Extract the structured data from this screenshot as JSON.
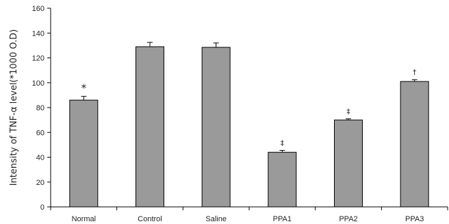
{
  "chart_data": {
    "type": "bar",
    "title": "",
    "xlabel": "",
    "ylabel": "Intensity of  TNF-α level(*1000 O.D)",
    "ylim": [
      0,
      160
    ],
    "yticks": [
      0,
      20,
      40,
      60,
      80,
      100,
      120,
      140,
      160
    ],
    "categories": [
      "Normal",
      "Control",
      "Saline",
      "PPA1",
      "PPA2",
      "PPA3"
    ],
    "values": [
      86,
      129,
      128.5,
      44,
      70,
      101
    ],
    "errors": [
      3,
      3.5,
      3.5,
      1.5,
      1,
      1.5
    ],
    "annotations": [
      "*",
      "",
      "",
      "‡",
      "‡",
      "†"
    ],
    "bar_color": "#9a9a9a",
    "grid": false
  }
}
